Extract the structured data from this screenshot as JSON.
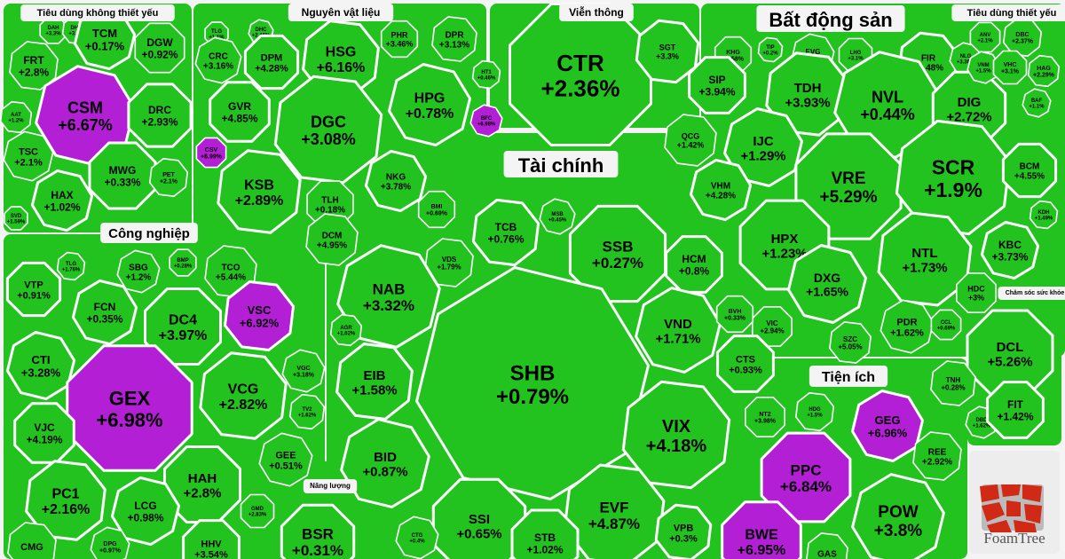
{
  "colors": {
    "up": "#22c31f",
    "ceiling": "#b31fd4",
    "gap": "#f4f4f4",
    "border": "#ffffff",
    "logo_tile": "#c23a22"
  },
  "logo": {
    "text": "FoamTree"
  },
  "chart_data": {
    "type": "treemap",
    "title": "",
    "sectors": [
      {
        "name": "Tiêu dùng không thiết yếu",
        "tiles": [
          {
            "ticker": "DAH",
            "change": "+3.3%"
          },
          {
            "ticker": "DHA",
            "change": "+3.3%"
          },
          {
            "ticker": "TCM",
            "change": "+0.17%"
          },
          {
            "ticker": "DGW",
            "change": "+0.92%"
          },
          {
            "ticker": "FRT",
            "change": "+2.8%"
          },
          {
            "ticker": "CSM",
            "change": "+6.67%",
            "ceiling": true
          },
          {
            "ticker": "DRC",
            "change": "+2.93%"
          },
          {
            "ticker": "AAT",
            "change": "+1.2%"
          },
          {
            "ticker": "TSC",
            "change": "+2.1%"
          },
          {
            "ticker": "MWG",
            "change": "+0.33%"
          },
          {
            "ticker": "PET",
            "change": "+2.1%"
          },
          {
            "ticker": "HAX",
            "change": "+1.02%"
          },
          {
            "ticker": "SVD",
            "change": "+1.59%"
          }
        ]
      },
      {
        "name": "Nguyên vật liệu",
        "tiles": [
          {
            "ticker": "TLG",
            "change": "+1.1%"
          },
          {
            "ticker": "HSG",
            "change": "+6.16%"
          },
          {
            "ticker": "DHC",
            "change": "+2.46%"
          },
          {
            "ticker": "PHR",
            "change": "+3.46%"
          },
          {
            "ticker": "DPR",
            "change": "+3.13%"
          },
          {
            "ticker": "CRC",
            "change": "+3.16%"
          },
          {
            "ticker": "DPM",
            "change": "+4.28%"
          },
          {
            "ticker": "HT1",
            "change": "+0.46%"
          },
          {
            "ticker": "HPG",
            "change": "+0.78%"
          },
          {
            "ticker": "GVR",
            "change": "+4.85%"
          },
          {
            "ticker": "DGC",
            "change": "+3.08%"
          },
          {
            "ticker": "BFC",
            "change": "+6.98%",
            "ceiling": true
          },
          {
            "ticker": "CSV",
            "change": "+6.99%",
            "ceiling": true
          },
          {
            "ticker": "KSB",
            "change": "+2.89%"
          },
          {
            "ticker": "NKG",
            "change": "+3.78%"
          },
          {
            "ticker": "TLH",
            "change": "+0.18%"
          },
          {
            "ticker": "DCM",
            "change": "+4.95%"
          }
        ]
      },
      {
        "name": "Viễn thông",
        "tiles": [
          {
            "ticker": "CTR",
            "change": "+2.36%"
          },
          {
            "ticker": "SGT",
            "change": "+3.3%"
          }
        ]
      },
      {
        "name": "Bất động sản",
        "tiles": [
          {
            "ticker": "KHG",
            "change": "+0.58%"
          },
          {
            "ticker": "TIP",
            "change": "+0.2%"
          },
          {
            "ticker": "EVG",
            "change": "+1.7%"
          },
          {
            "ticker": "LHG",
            "change": "+3.1%"
          },
          {
            "ticker": "FIR",
            "change": "+2.48%"
          },
          {
            "ticker": "NLG",
            "change": "+3.36%"
          },
          {
            "ticker": "SIP",
            "change": "+3.94%"
          },
          {
            "ticker": "TDH",
            "change": "+3.93%"
          },
          {
            "ticker": "NVL",
            "change": "+0.44%"
          },
          {
            "ticker": "DIG",
            "change": "+2.72%"
          },
          {
            "ticker": "QCG",
            "change": "+1.42%"
          },
          {
            "ticker": "IJC",
            "change": "+1.29%"
          },
          {
            "ticker": "VRE",
            "change": "+5.29%"
          },
          {
            "ticker": "SCR",
            "change": "+1.9%"
          },
          {
            "ticker": "VHM",
            "change": "+4.28%"
          },
          {
            "ticker": "HPX",
            "change": "+1.23%"
          },
          {
            "ticker": "NTL",
            "change": "+1.73%"
          },
          {
            "ticker": "DXG",
            "change": "+1.65%"
          },
          {
            "ticker": "VIC",
            "change": "+2.94%"
          },
          {
            "ticker": "SZC",
            "change": "+5.05%"
          },
          {
            "ticker": "PDR",
            "change": "+1.62%"
          },
          {
            "ticker": "CCL",
            "change": "+0.69%"
          }
        ]
      },
      {
        "name": "Tiêu dùng thiết yếu",
        "tiles": [
          {
            "ticker": "ANV",
            "change": "+2.1%"
          },
          {
            "ticker": "DBC",
            "change": "+2.37%"
          },
          {
            "ticker": "VNM",
            "change": "+1.5%"
          },
          {
            "ticker": "VHC",
            "change": "+3.1%"
          },
          {
            "ticker": "HAG",
            "change": "+2.29%"
          },
          {
            "ticker": "BAF",
            "change": "+1.1%"
          },
          {
            "ticker": "BCM",
            "change": "+4.55%"
          },
          {
            "ticker": "KDH",
            "change": "+1.49%"
          },
          {
            "ticker": "KBC",
            "change": "+3.73%"
          },
          {
            "ticker": "HDC",
            "change": "+3%"
          }
        ]
      },
      {
        "name": "Chăm sóc sức khỏe",
        "tiles": [
          {
            "ticker": "DCL",
            "change": "+5.26%"
          },
          {
            "ticker": "TNH",
            "change": "+0.28%"
          },
          {
            "ticker": "DBD",
            "change": "+1.62%"
          },
          {
            "ticker": "FIT",
            "change": "+1.42%"
          }
        ]
      },
      {
        "name": "Công nghiệp",
        "tiles": [
          {
            "ticker": "VTP",
            "change": "+0.91%"
          },
          {
            "ticker": "TLG",
            "change": "+1.76%"
          },
          {
            "ticker": "SBG",
            "change": "+1.2%"
          },
          {
            "ticker": "BMP",
            "change": "+0.28%"
          },
          {
            "ticker": "TCO",
            "change": "+5.44%"
          },
          {
            "ticker": "FCN",
            "change": "+0.35%"
          },
          {
            "ticker": "DC4",
            "change": "+3.97%"
          },
          {
            "ticker": "VSC",
            "change": "+6.92%",
            "ceiling": true
          },
          {
            "ticker": "CTI",
            "change": "+3.28%"
          },
          {
            "ticker": "GEX",
            "change": "+6.98%",
            "ceiling": true
          },
          {
            "ticker": "VCG",
            "change": "+2.82%"
          },
          {
            "ticker": "VGC",
            "change": "+3.18%"
          },
          {
            "ticker": "VJC",
            "change": "+4.19%"
          },
          {
            "ticker": "TV2",
            "change": "+1.62%"
          },
          {
            "ticker": "GEE",
            "change": "+0.51%"
          },
          {
            "ticker": "HAH",
            "change": "+2.8%"
          },
          {
            "ticker": "PC1",
            "change": "+2.16%"
          },
          {
            "ticker": "LCG",
            "change": "+0.98%"
          },
          {
            "ticker": "GMD",
            "change": "+2.83%"
          },
          {
            "ticker": "CMG",
            "change": ""
          },
          {
            "ticker": "DPG",
            "change": "+0.97%"
          },
          {
            "ticker": "HHV",
            "change": "+3.54%"
          }
        ]
      },
      {
        "name": "Tài chính",
        "tiles": [
          {
            "ticker": "BMI",
            "change": "+0.69%"
          },
          {
            "ticker": "TCB",
            "change": "+0.76%"
          },
          {
            "ticker": "MSB",
            "change": "+0.45%"
          },
          {
            "ticker": "SSB",
            "change": "+0.27%"
          },
          {
            "ticker": "VDS",
            "change": "+1.79%"
          },
          {
            "ticker": "NAB",
            "change": "+3.32%"
          },
          {
            "ticker": "HCM",
            "change": "+0.8%"
          },
          {
            "ticker": "AGR",
            "change": "+1.02%"
          },
          {
            "ticker": "VND",
            "change": "+1.71%"
          },
          {
            "ticker": "BVH",
            "change": "+0.33%"
          },
          {
            "ticker": "EIB",
            "change": "+1.58%"
          },
          {
            "ticker": "SHB",
            "change": "+0.79%"
          },
          {
            "ticker": "CTS",
            "change": "+0.93%"
          },
          {
            "ticker": "VIX",
            "change": "+4.18%"
          },
          {
            "ticker": "BID",
            "change": "+0.87%"
          },
          {
            "ticker": "SSI",
            "change": "+0.65%"
          },
          {
            "ticker": "EVF",
            "change": "+4.87%"
          },
          {
            "ticker": "CTG",
            "change": "+0.4%"
          },
          {
            "ticker": "STB",
            "change": "+1.02%"
          },
          {
            "ticker": "VPB",
            "change": "+0.3%"
          }
        ]
      },
      {
        "name": "Năng lượng",
        "tiles": [
          {
            "ticker": "BSR",
            "change": "+0.31%"
          }
        ]
      },
      {
        "name": "Tiện ích",
        "tiles": [
          {
            "ticker": "NT2",
            "change": "+3.98%"
          },
          {
            "ticker": "HDG",
            "change": "+1.5%"
          },
          {
            "ticker": "GEG",
            "change": "+6.96%",
            "ceiling": true
          },
          {
            "ticker": "PPC",
            "change": "+6.84%",
            "ceiling": true
          },
          {
            "ticker": "REE",
            "change": "+2.92%"
          },
          {
            "ticker": "POW",
            "change": "+3.8%"
          },
          {
            "ticker": "BWE",
            "change": "+6.95%",
            "ceiling": true
          },
          {
            "ticker": "GAS",
            "change": ""
          }
        ]
      }
    ]
  }
}
